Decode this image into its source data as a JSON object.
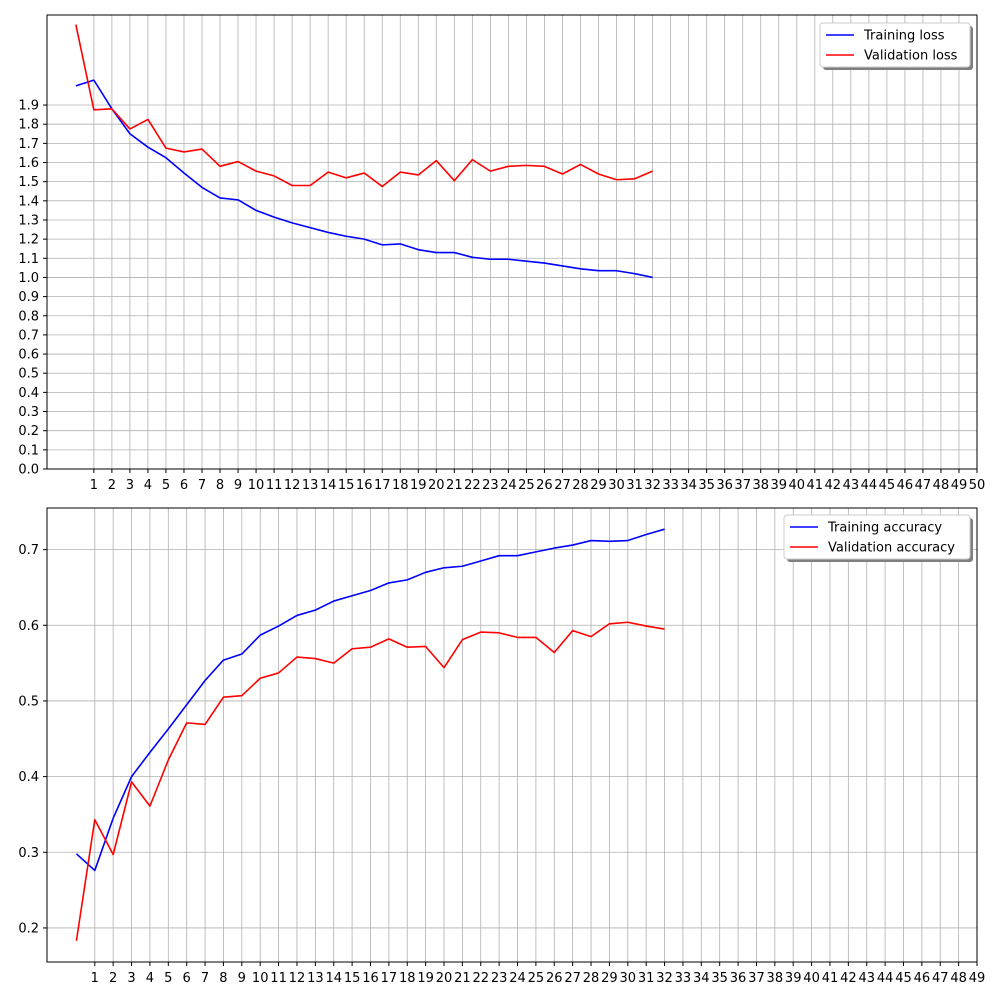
{
  "chart_data": [
    {
      "type": "line",
      "title": "",
      "xlabel": "",
      "ylabel": "",
      "x": [
        0,
        1,
        2,
        3,
        4,
        5,
        6,
        7,
        8,
        9,
        10,
        11,
        12,
        13,
        14,
        15,
        16,
        17,
        18,
        19,
        20,
        21,
        22,
        23,
        24,
        25,
        26,
        27,
        28,
        29,
        30,
        31,
        32
      ],
      "xticks": [
        1,
        2,
        3,
        4,
        5,
        6,
        7,
        8,
        9,
        10,
        11,
        12,
        13,
        14,
        15,
        16,
        17,
        18,
        19,
        20,
        21,
        22,
        23,
        24,
        25,
        26,
        27,
        28,
        29,
        30,
        31,
        32,
        33,
        34,
        35,
        36,
        37,
        38,
        39,
        40,
        41,
        42,
        43,
        44,
        45,
        46,
        47,
        48,
        49,
        50
      ],
      "yticks": [
        0.0,
        0.1,
        0.2,
        0.3,
        0.4,
        0.5,
        0.6,
        0.7,
        0.8,
        0.9,
        1.0,
        1.1,
        1.2,
        1.3,
        1.4,
        1.5,
        1.6,
        1.7,
        1.8,
        1.9
      ],
      "ylim": [
        0.0,
        2.37
      ],
      "xlim": [
        -1.6,
        50.0
      ],
      "grid": true,
      "legend_position": "top-right",
      "series": [
        {
          "name": "Training loss",
          "color": "#0000ff",
          "values": [
            2.0,
            2.03,
            1.88,
            1.75,
            1.68,
            1.625,
            1.545,
            1.47,
            1.415,
            1.405,
            1.35,
            1.315,
            1.285,
            1.26,
            1.235,
            1.215,
            1.2,
            1.17,
            1.175,
            1.145,
            1.13,
            1.13,
            1.105,
            1.095,
            1.095,
            1.085,
            1.075,
            1.06,
            1.045,
            1.035,
            1.035,
            1.02,
            1.0
          ]
        },
        {
          "name": "Validation loss",
          "color": "#ff0000",
          "values": [
            2.32,
            1.875,
            1.88,
            1.775,
            1.825,
            1.675,
            1.655,
            1.67,
            1.58,
            1.605,
            1.555,
            1.53,
            1.48,
            1.48,
            1.55,
            1.52,
            1.545,
            1.475,
            1.55,
            1.535,
            1.61,
            1.505,
            1.615,
            1.555,
            1.58,
            1.585,
            1.58,
            1.54,
            1.59,
            1.54,
            1.51,
            1.515,
            1.555
          ]
        }
      ]
    },
    {
      "type": "line",
      "title": "",
      "xlabel": "",
      "ylabel": "",
      "x": [
        0,
        1,
        2,
        3,
        4,
        5,
        6,
        7,
        8,
        9,
        10,
        11,
        12,
        13,
        14,
        15,
        16,
        17,
        18,
        19,
        20,
        21,
        22,
        23,
        24,
        25,
        26,
        27,
        28,
        29,
        30,
        31,
        32
      ],
      "xticks": [
        1,
        2,
        3,
        4,
        5,
        6,
        7,
        8,
        9,
        10,
        11,
        12,
        13,
        14,
        15,
        16,
        17,
        18,
        19,
        20,
        21,
        22,
        23,
        24,
        25,
        26,
        27,
        28,
        29,
        30,
        31,
        32,
        33,
        34,
        35,
        36,
        37,
        38,
        39,
        40,
        41,
        42,
        43,
        44,
        45,
        46,
        47,
        48,
        49
      ],
      "yticks": [
        0.2,
        0.3,
        0.4,
        0.5,
        0.6,
        0.7
      ],
      "ylim": [
        0.155,
        0.755
      ],
      "xlim": [
        -1.6,
        49.0
      ],
      "grid": true,
      "legend_position": "top-right",
      "series": [
        {
          "name": "Training accuracy",
          "color": "#0000ff",
          "values": [
            0.298,
            0.276,
            0.345,
            0.4,
            0.432,
            0.463,
            0.495,
            0.527,
            0.554,
            0.562,
            0.587,
            0.599,
            0.613,
            0.62,
            0.632,
            0.639,
            0.646,
            0.656,
            0.66,
            0.67,
            0.676,
            0.678,
            0.685,
            0.692,
            0.692,
            0.697,
            0.702,
            0.706,
            0.712,
            0.711,
            0.712,
            0.72,
            0.727
          ]
        },
        {
          "name": "Validation accuracy",
          "color": "#ff0000",
          "values": [
            0.183,
            0.343,
            0.297,
            0.393,
            0.361,
            0.422,
            0.471,
            0.469,
            0.505,
            0.507,
            0.53,
            0.537,
            0.558,
            0.556,
            0.55,
            0.569,
            0.571,
            0.582,
            0.571,
            0.572,
            0.544,
            0.581,
            0.591,
            0.59,
            0.584,
            0.584,
            0.564,
            0.593,
            0.585,
            0.602,
            0.604,
            0.599,
            0.595
          ]
        }
      ]
    }
  ]
}
